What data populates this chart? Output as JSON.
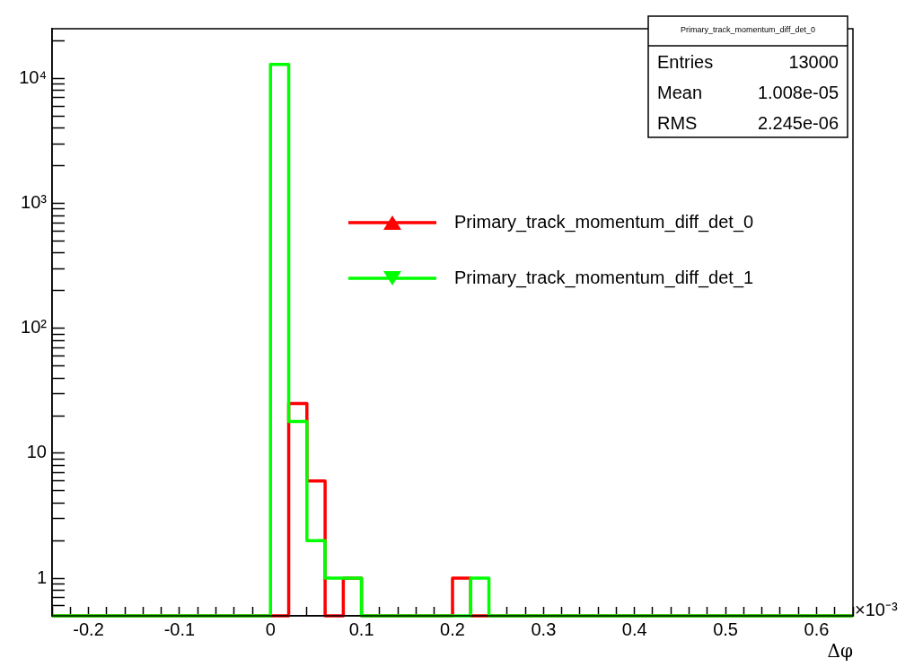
{
  "chart_data": {
    "type": "histogram",
    "xlabel": "Δφ",
    "bins": [
      -0.24,
      -0.22,
      -0.2,
      -0.18,
      -0.16,
      -0.14,
      -0.12,
      -0.1,
      -0.08,
      -0.06,
      -0.04,
      -0.02,
      0,
      0.02,
      0.04,
      0.06,
      0.08,
      0.1,
      0.12,
      0.14,
      0.16,
      0.18,
      0.2,
      0.22,
      0.24,
      0.26,
      0.28,
      0.3,
      0.32,
      0.34,
      0.36,
      0.38,
      0.4,
      0.42,
      0.44,
      0.46,
      0.48,
      0.5,
      0.52,
      0.54,
      0.56,
      0.58,
      0.6,
      0.62,
      0.64
    ],
    "series": [
      {
        "name": "Primary_track_momentum_diff_det_0",
        "color": "#ff0000",
        "marker": "triangle",
        "values": [
          null,
          null,
          null,
          null,
          null,
          null,
          null,
          null,
          null,
          null,
          null,
          null,
          null,
          25,
          6,
          null,
          1,
          null,
          null,
          null,
          null,
          null,
          1,
          null,
          null,
          null,
          null,
          null,
          null,
          null,
          null,
          null,
          null,
          null,
          null,
          null,
          null,
          null,
          null,
          null,
          null,
          null,
          null,
          null
        ]
      },
      {
        "name": "Primary_track_momentum_diff_det_1",
        "color": "#00ff00",
        "marker": "triangle",
        "values": [
          null,
          null,
          null,
          null,
          null,
          null,
          null,
          null,
          null,
          null,
          null,
          null,
          12977,
          18,
          2,
          1,
          1,
          null,
          null,
          null,
          null,
          null,
          null,
          1,
          null,
          null,
          null,
          null,
          null,
          null,
          null,
          null,
          null,
          null,
          null,
          null,
          null,
          null,
          null,
          null,
          null,
          null,
          null,
          null
        ]
      }
    ],
    "xlim": [
      -0.24,
      0.64
    ],
    "xticks": [
      {
        "value": -0.24,
        "label": null
      },
      {
        "value": -0.22,
        "label": null
      },
      -0.2,
      {
        "value": -0.18,
        "label": null
      },
      {
        "value": -0.16,
        "label": null
      },
      {
        "value": -0.14,
        "label": null
      },
      {
        "value": -0.12,
        "label": null
      },
      -0.1,
      {
        "value": -0.08,
        "label": null
      },
      {
        "value": -0.06,
        "label": null
      },
      {
        "value": -0.04,
        "label": null
      },
      {
        "value": -0.02,
        "label": null
      },
      0,
      {
        "value": 0.02,
        "label": null
      },
      {
        "value": 0.04,
        "label": null
      },
      {
        "value": 0.06,
        "label": null
      },
      {
        "value": 0.08,
        "label": null
      },
      0.1,
      {
        "value": 0.12,
        "label": null
      },
      {
        "value": 0.14,
        "label": null
      },
      {
        "value": 0.16,
        "label": null
      },
      {
        "value": 0.18,
        "label": null
      },
      0.2,
      {
        "value": 0.22,
        "label": null
      },
      {
        "value": 0.24,
        "label": null
      },
      {
        "value": 0.26,
        "label": null
      },
      {
        "value": 0.28,
        "label": null
      },
      0.3,
      {
        "value": 0.32,
        "label": null
      },
      {
        "value": 0.34,
        "label": null
      },
      {
        "value": 0.36,
        "label": null
      },
      {
        "value": 0.38,
        "label": null
      },
      0.4,
      {
        "value": 0.42,
        "label": null
      },
      {
        "value": 0.44,
        "label": null
      },
      {
        "value": 0.46,
        "label": null
      },
      {
        "value": 0.48,
        "label": null
      },
      0.5,
      {
        "value": 0.52,
        "label": null
      },
      {
        "value": 0.54,
        "label": null
      },
      {
        "value": 0.56,
        "label": null
      },
      {
        "value": 0.58,
        "label": null
      },
      0.6,
      {
        "value": 0.62,
        "label": null
      },
      {
        "value": 0.64,
        "label": null
      }
    ],
    "ylim": [
      0.5,
      25000
    ],
    "yticks": [
      {
        "value": 0.6,
        "label": null
      },
      {
        "value": 0.7,
        "label": null
      },
      {
        "value": 0.8,
        "label": null
      },
      {
        "value": 0.9,
        "label": null
      },
      1,
      {
        "value": 2,
        "label": null
      },
      {
        "value": 3,
        "label": null
      },
      {
        "value": 4,
        "label": null
      },
      {
        "value": 5,
        "label": null
      },
      {
        "value": 6,
        "label": null
      },
      {
        "value": 7,
        "label": null
      },
      {
        "value": 8,
        "label": null
      },
      {
        "value": 9,
        "label": null
      },
      10,
      {
        "value": 20,
        "label": null
      },
      {
        "value": 30,
        "label": null
      },
      {
        "value": 40,
        "label": null
      },
      {
        "value": 50,
        "label": null
      },
      {
        "value": 60,
        "label": null
      },
      {
        "value": 70,
        "label": null
      },
      {
        "value": 80,
        "label": null
      },
      {
        "value": 90,
        "label": null
      },
      {
        "value": 100,
        "label": "10²"
      },
      {
        "value": 200,
        "label": null
      },
      {
        "value": 300,
        "label": null
      },
      {
        "value": 400,
        "label": null
      },
      {
        "value": 500,
        "label": null
      },
      {
        "value": 600,
        "label": null
      },
      {
        "value": 700,
        "label": null
      },
      {
        "value": 800,
        "label": null
      },
      {
        "value": 900,
        "label": null
      },
      {
        "value": 1000,
        "label": "10³"
      },
      {
        "value": 2000,
        "label": null
      },
      {
        "value": 3000,
        "label": null
      },
      {
        "value": 4000,
        "label": null
      },
      {
        "value": 5000,
        "label": null
      },
      {
        "value": 6000,
        "label": null
      },
      {
        "value": 7000,
        "label": null
      },
      {
        "value": 8000,
        "label": null
      },
      {
        "value": 9000,
        "label": null
      },
      {
        "value": 10000,
        "label": "10⁴"
      },
      {
        "value": 20000,
        "label": null
      }
    ],
    "log": true,
    "grid": false,
    "legend": "top right",
    "annotations": [
      "Primary_track_momentum_diff_det_0",
      "Entries",
      "13000",
      "Mean",
      "1.008e-05",
      "RMS",
      "2.245e-06",
      "×10⁻³"
    ]
  }
}
